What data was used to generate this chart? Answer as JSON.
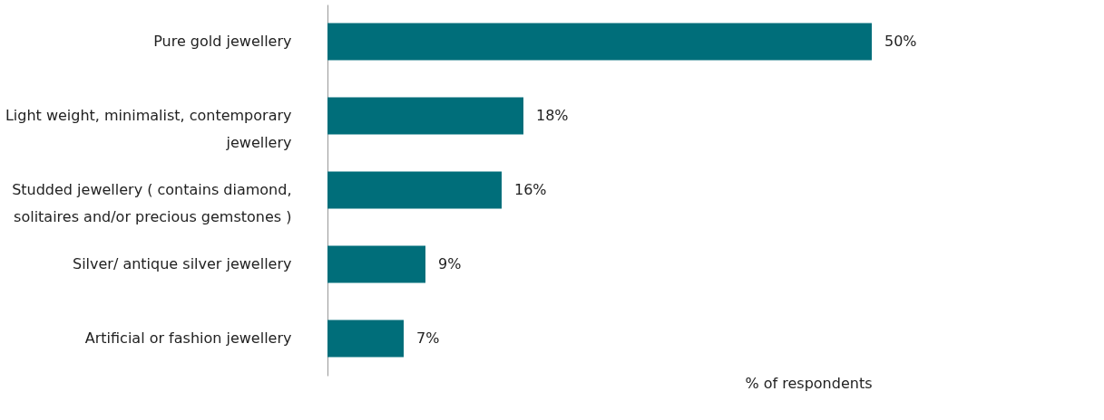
{
  "chart_data": {
    "type": "bar",
    "orientation": "horizontal",
    "categories": [
      "Pure gold jewellery",
      "Light weight, minimalist, contemporary jewellery",
      "Studded jewellery ( contains diamond, solitaires and/or precious gemstones )",
      "Silver/ antique silver jewellery",
      "Artificial or fashion jewellery"
    ],
    "values": [
      50,
      18,
      16,
      9,
      7
    ],
    "value_labels": [
      "50%",
      "18%",
      "16%",
      "9%",
      "7%"
    ],
    "color": "#006e7a",
    "xlabel": "% of respondents",
    "grid": false
  }
}
